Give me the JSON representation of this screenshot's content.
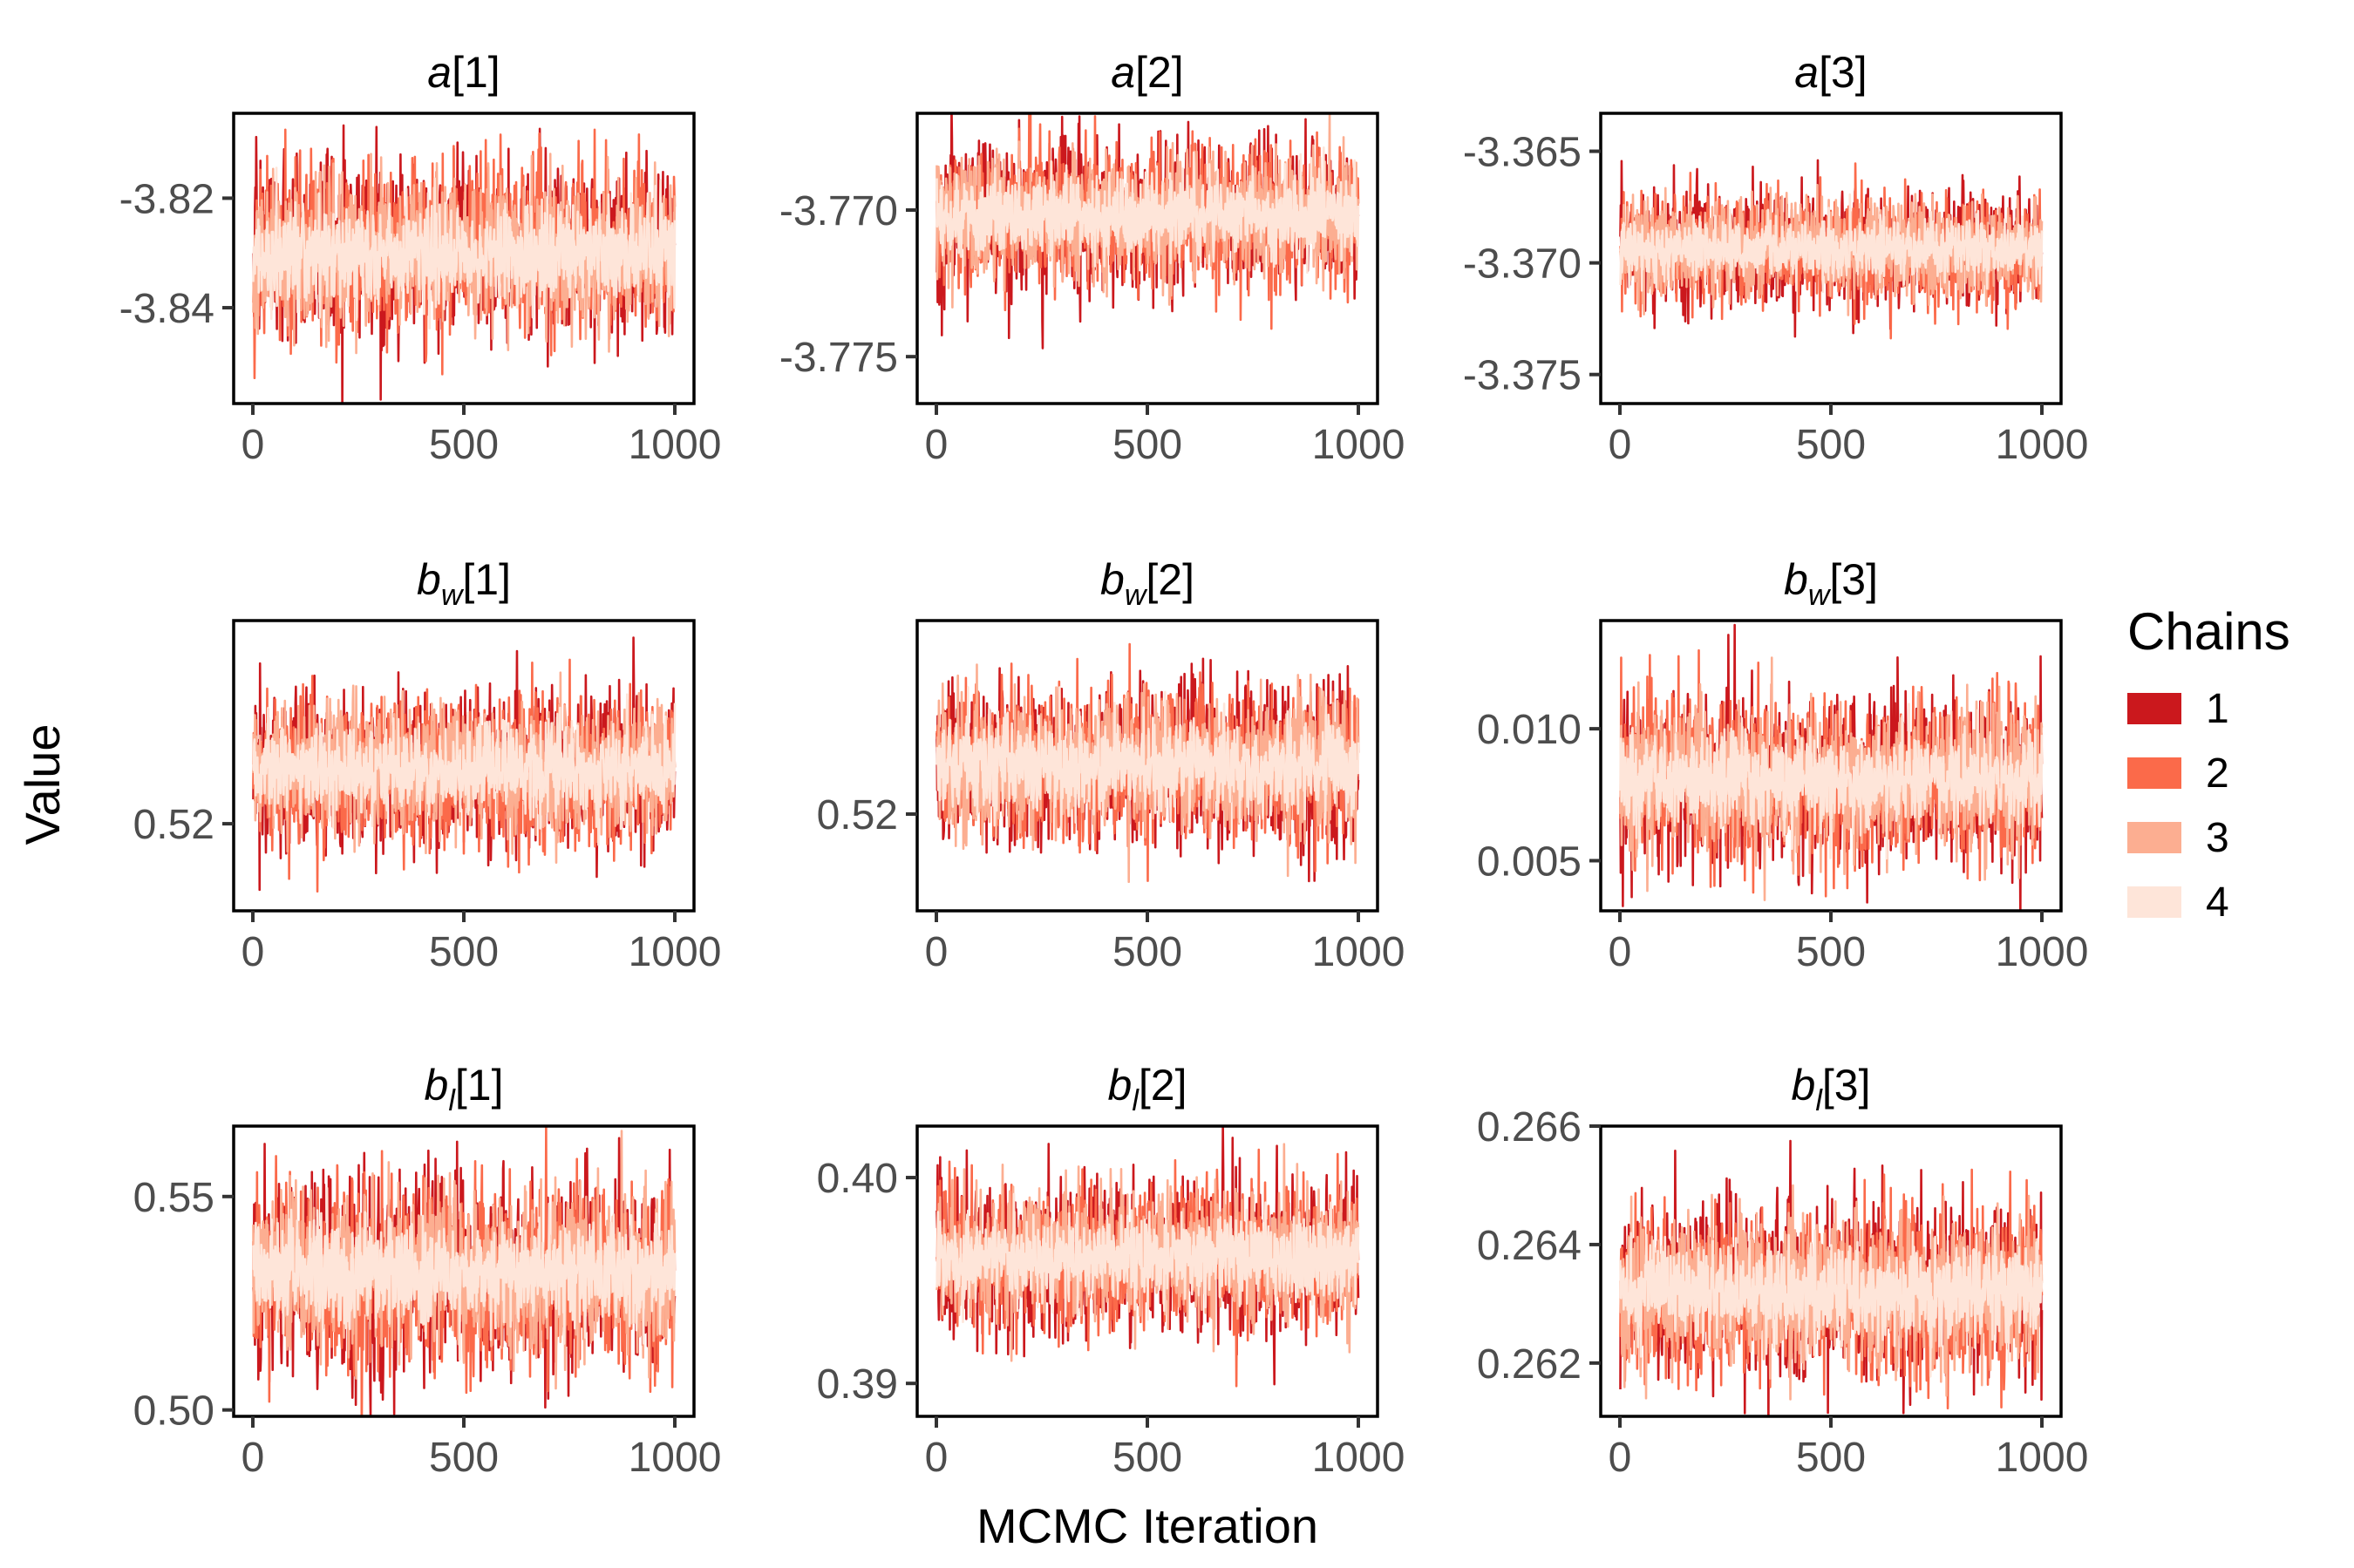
{
  "chart_data": {
    "type": "line",
    "ylabel": "Value",
    "xlabel": "MCMC Iteration",
    "legend": {
      "title": "Chains",
      "position": "right",
      "entries": [
        {
          "label": "1",
          "color": "#CB181D"
        },
        {
          "label": "2",
          "color": "#FB6A4A"
        },
        {
          "label": "3",
          "color": "#FCAE91"
        },
        {
          "label": "4",
          "color": "#FEE5D9"
        }
      ]
    },
    "x_range": [
      0,
      1000
    ],
    "x_ticks": [
      0,
      500,
      1000
    ],
    "x_tick_labels": [
      "0",
      "500",
      "1000"
    ],
    "iterations_per_chain": 1000,
    "panels": [
      {
        "param": "a",
        "sub": "",
        "idx": "[1]",
        "mean": -3.83,
        "sd": 0.006,
        "ylim": [
          -3.8575,
          -3.8045
        ],
        "y_ticks": [
          -3.84,
          -3.82
        ],
        "y_tick_labels": [
          "-3.84",
          "-3.82"
        ]
      },
      {
        "param": "a",
        "sub": "",
        "idx": "[2]",
        "mean": -3.7702,
        "sd": 0.00095,
        "ylim": [
          -3.7766,
          -3.7667
        ],
        "y_ticks": [
          -3.775,
          -3.77
        ],
        "y_tick_labels": [
          "-3.775",
          "-3.770"
        ]
      },
      {
        "param": "a",
        "sub": "",
        "idx": "[3]",
        "mean": -3.3694,
        "sd": 0.00095,
        "ylim": [
          -3.3763,
          -3.3633
        ],
        "y_ticks": [
          -3.375,
          -3.37,
          -3.365
        ],
        "y_tick_labels": [
          "-3.375",
          "-3.370",
          "-3.365"
        ]
      },
      {
        "param": "b",
        "sub": "w",
        "idx": "[1]",
        "mean": 0.5228,
        "sd": 0.0015,
        "ylim": [
          0.5155,
          0.5305
        ],
        "y_ticks": [
          0.52
        ],
        "y_tick_labels": [
          "0.52"
        ]
      },
      {
        "param": "b",
        "sub": "w",
        "idx": "[2]",
        "mean": 0.5228,
        "sd": 0.0017,
        "ylim": [
          0.5145,
          0.531
        ],
        "y_ticks": [
          0.52
        ],
        "y_tick_labels": [
          "0.52"
        ]
      },
      {
        "param": "b",
        "sub": "w",
        "idx": "[3]",
        "mean": 0.0081,
        "sd": 0.0012,
        "ylim": [
          0.0031,
          0.0141
        ],
        "y_ticks": [
          0.005,
          0.01
        ],
        "y_tick_labels": [
          "0.005",
          "0.010"
        ]
      },
      {
        "param": "b",
        "sub": "l",
        "idx": "[1]",
        "mean": 0.532,
        "sd": 0.0085,
        "ylim": [
          0.4985,
          0.5665
        ],
        "y_ticks": [
          0.5,
          0.55
        ],
        "y_tick_labels": [
          "0.50",
          "0.55"
        ]
      },
      {
        "param": "b",
        "sub": "l",
        "idx": "[2]",
        "mean": 0.3961,
        "sd": 0.0014,
        "ylim": [
          0.3884,
          0.4025
        ],
        "y_ticks": [
          0.39,
          0.4
        ],
        "y_tick_labels": [
          "0.39",
          "0.40"
        ]
      },
      {
        "param": "b",
        "sub": "l",
        "idx": "[3]",
        "mean": 0.2632,
        "sd": 0.00055,
        "ylim": [
          0.2611,
          0.266
        ],
        "y_ticks": [
          0.262,
          0.264,
          0.266
        ],
        "y_tick_labels": [
          "0.262",
          "0.264",
          "0.266"
        ]
      }
    ]
  }
}
